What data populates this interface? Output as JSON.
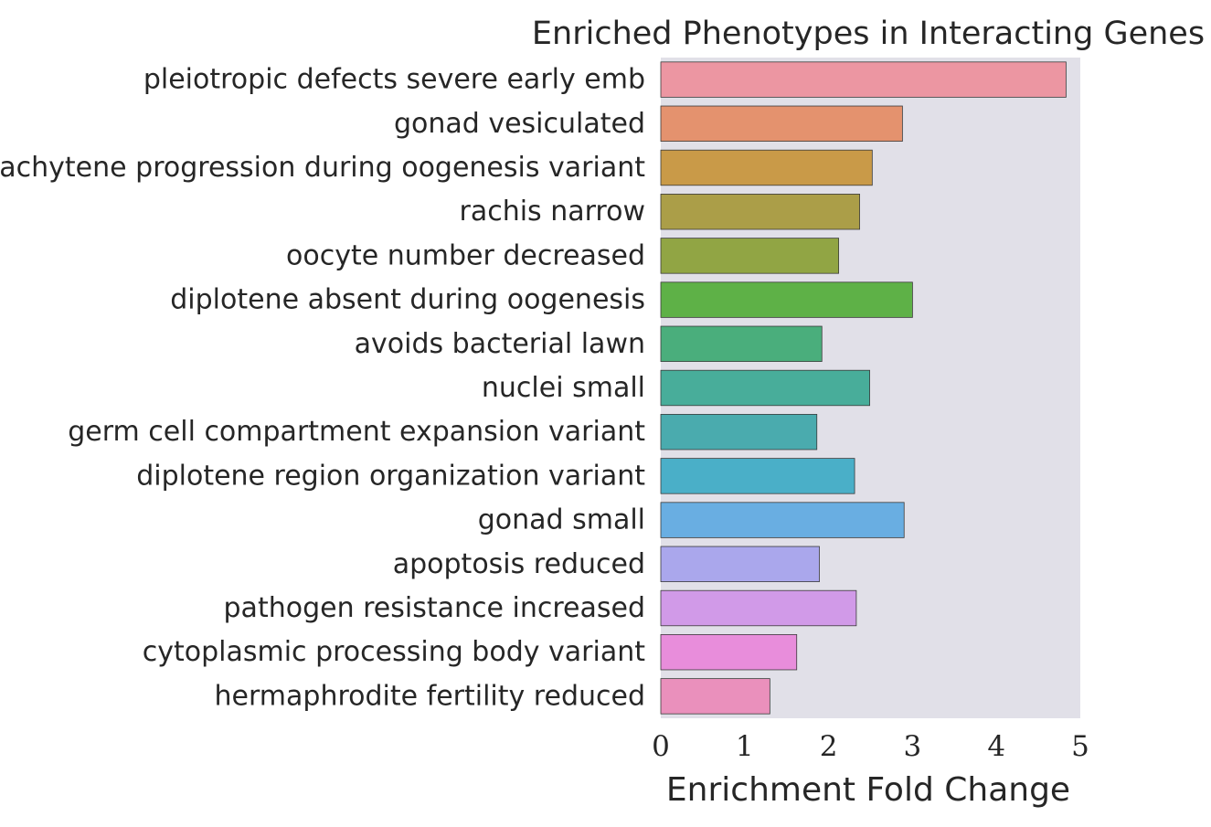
{
  "chart_data": {
    "type": "bar",
    "orientation": "horizontal",
    "title": "Enriched Phenotypes in Interacting Genes",
    "xlabel": "Enrichment Fold Change",
    "ylabel": "",
    "xlim": [
      0,
      5
    ],
    "xticks": [
      "0",
      "1",
      "2",
      "3",
      "4",
      "5"
    ],
    "grid": false,
    "background": "#e1e0e8",
    "categories": [
      "pleiotropic defects severe early emb",
      "gonad vesiculated",
      "pachytene progression during oogenesis variant",
      "rachis narrow",
      "oocyte number decreased",
      "diplotene absent during oogenesis",
      "avoids bacterial lawn",
      "nuclei small",
      "germ cell compartment expansion variant",
      "diplotene region organization variant",
      "gonad small",
      "apoptosis reduced",
      "pathogen resistance increased",
      "cytoplasmic processing body variant",
      "hermaphrodite fertility reduced"
    ],
    "values": [
      4.83,
      2.88,
      2.52,
      2.37,
      2.12,
      3.0,
      1.92,
      2.49,
      1.86,
      2.31,
      2.9,
      1.89,
      2.33,
      1.62,
      1.3
    ],
    "colors": [
      "#ec96a2",
      "#e4926e",
      "#c99a48",
      "#ab9e48",
      "#91a544",
      "#5eb147",
      "#4aae7c",
      "#48ad9a",
      "#4aabae",
      "#4aafc8",
      "#69aee2",
      "#aaa7ec",
      "#d19ae8",
      "#e88ddb",
      "#ea90bc"
    ]
  }
}
